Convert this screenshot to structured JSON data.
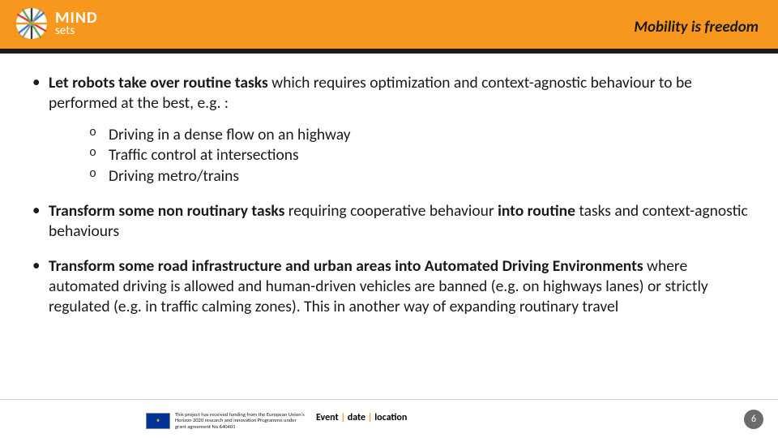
{
  "header": {
    "bar_color": "#f8971d",
    "underline_color": "#1a1a1a",
    "logo": {
      "line1": "MIND",
      "line2": "sets",
      "text_color": "#ffffff"
    },
    "tagline": "Mobility is freedom"
  },
  "content": {
    "text_color": "#1a1a1a",
    "font_size_pt": 15,
    "bullets": [
      {
        "runs": [
          {
            "t": "Let robots take over routine tasks",
            "b": true
          },
          {
            "t": " which requires optimization and  context-agnostic behaviour to be performed at the best, e.g. :",
            "b": false
          }
        ],
        "sub": [
          "Driving in a dense flow on an highway",
          "Traffic control at intersections",
          "Driving metro/trains"
        ]
      },
      {
        "runs": [
          {
            "t": "Transform some non routinary tasks",
            "b": true
          },
          {
            "t": " requiring cooperative behaviour ",
            "b": false
          },
          {
            "t": "into routine",
            "b": true
          },
          {
            "t": " tasks and context-agnostic behaviours",
            "b": false
          }
        ]
      },
      {
        "runs": [
          {
            "t": "Transform some road infrastructure and urban areas into Automated Driving Environments",
            "b": true
          },
          {
            "t": " where automated driving is allowed and human-driven vehicles are banned (e.g. on highways lanes) or strictly regulated (e.g. in traffic calming zones). This in another way of expanding routinary travel",
            "b": false
          }
        ]
      }
    ]
  },
  "footer": {
    "funding_text": "This project has received funding from the European Union's Horizon 2020 research and innovation Programme under grant agreement No 640401",
    "event": {
      "label_event": "Event",
      "label_date": "date",
      "label_location": "location",
      "sep": " | ",
      "sep_color": "#f8971d"
    },
    "page_number": "6",
    "page_badge_color": "#6b6b6b"
  }
}
